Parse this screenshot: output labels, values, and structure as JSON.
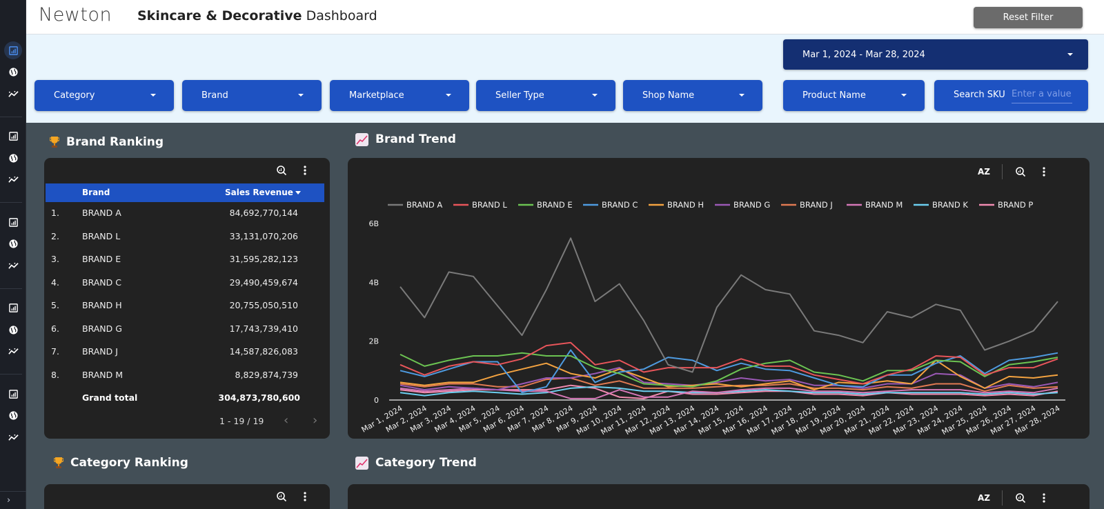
{
  "header": {
    "logo": "Newton",
    "title_bold": "Skincare & Decorative",
    "title_rest": "Dashboard",
    "reset_label": "Reset Filter"
  },
  "rail": {
    "groups": [
      [
        "report-icon",
        "globe-icon",
        "trend-icon"
      ],
      [
        "report-icon",
        "globe-icon",
        "trend-icon"
      ],
      [
        "report-icon",
        "globe-icon",
        "trend-icon"
      ],
      [
        "report-icon",
        "globe-icon",
        "trend-icon"
      ],
      [
        "report-icon",
        "globe-icon",
        "trend-icon"
      ]
    ],
    "active_index": 0,
    "expand_icon": "chevron-right-icon"
  },
  "filters": {
    "date_range": "Mar 1, 2024 - Mar 28, 2024",
    "dropdowns": [
      "Category",
      "Brand",
      "Marketplace",
      "Seller Type",
      "Shop Name",
      "Product Name"
    ],
    "sku_label": "Search SKU",
    "sku_placeholder": "Enter a value",
    "sku_value": ""
  },
  "brand_ranking": {
    "title": "Brand Ranking",
    "columns": [
      "Brand",
      "Sales Revenue"
    ],
    "sort_column": "Sales Revenue",
    "rows": [
      {
        "rank": "1.",
        "brand": "BRAND A",
        "revenue": "84,692,770,144"
      },
      {
        "rank": "2.",
        "brand": "BRAND L",
        "revenue": "33,131,070,206"
      },
      {
        "rank": "3.",
        "brand": "BRAND E",
        "revenue": "31,595,282,123"
      },
      {
        "rank": "4.",
        "brand": "BRAND C",
        "revenue": "29,490,459,674"
      },
      {
        "rank": "5.",
        "brand": "BRAND H",
        "revenue": "20,755,050,510"
      },
      {
        "rank": "6.",
        "brand": "BRAND G",
        "revenue": "17,743,739,410"
      },
      {
        "rank": "7.",
        "brand": "BRAND J",
        "revenue": "14,587,826,083"
      },
      {
        "rank": "8.",
        "brand": "BRAND M",
        "revenue": "8,829,874,739"
      }
    ],
    "grand_total_label": "Grand total",
    "grand_total": "304,873,780,600",
    "pagination": "1 - 19 / 19"
  },
  "brand_trend": {
    "title": "Brand Trend",
    "sort_label": "AZ"
  },
  "category_ranking": {
    "title": "Category Ranking"
  },
  "category_trend": {
    "title": "Category Trend",
    "sort_label": "AZ"
  },
  "chart_data": {
    "type": "line",
    "title": "Brand Trend",
    "xlabel": "",
    "ylabel": "",
    "ylim": [
      0,
      6000000000
    ],
    "yticks": [
      0,
      2000000000,
      4000000000,
      6000000000
    ],
    "ytick_labels": [
      "0",
      "2B",
      "4B",
      "6B"
    ],
    "grid": false,
    "legend": "top",
    "x": [
      "Mar 1, 2024",
      "Mar 2, 2024",
      "Mar 3, 2024",
      "Mar 4, 2024",
      "Mar 5, 2024",
      "Mar 6, 2024",
      "Mar 7, 2024",
      "Mar 8, 2024",
      "Mar 9, 2024",
      "Mar 10, 2024",
      "Mar 11, 2024",
      "Mar 12, 2024",
      "Mar 13, 2024",
      "Mar 14, 2024",
      "Mar 15, 2024",
      "Mar 16, 2024",
      "Mar 17, 2024",
      "Mar 18, 2024",
      "Mar 19, 2024",
      "Mar 20, 2024",
      "Mar 21, 2024",
      "Mar 22, 2024",
      "Mar 23, 2024",
      "Mar 24, 2024",
      "Mar 25, 2024",
      "Mar 26, 2024",
      "Mar 27, 2024",
      "Mar 28, 2024"
    ],
    "series": [
      {
        "name": "BRAND A",
        "color": "#7a7a7a",
        "values": [
          3.85,
          2.8,
          4.35,
          4.2,
          3.2,
          2.2,
          3.75,
          5.5,
          3.35,
          3.95,
          2.7,
          1.2,
          0.95,
          3.15,
          4.25,
          3.75,
          3.6,
          2.35,
          2.2,
          1.95,
          3.0,
          2.8,
          3.25,
          3.05,
          1.7,
          2.0,
          2.35,
          3.35
        ]
      },
      {
        "name": "BRAND L",
        "color": "#e8555a",
        "values": [
          1.2,
          0.85,
          1.15,
          1.3,
          1.2,
          1.4,
          1.85,
          1.95,
          1.2,
          1.35,
          0.95,
          1.1,
          1.1,
          1.1,
          1.4,
          1.15,
          1.15,
          0.85,
          0.7,
          0.55,
          0.85,
          1.05,
          1.5,
          1.45,
          0.85,
          1.1,
          1.1,
          1.4
        ]
      },
      {
        "name": "BRAND E",
        "color": "#6cc452",
        "values": [
          1.55,
          1.15,
          1.35,
          1.5,
          1.5,
          1.6,
          1.5,
          1.5,
          1.1,
          0.9,
          0.55,
          0.5,
          0.45,
          0.65,
          1.05,
          1.25,
          1.35,
          0.95,
          0.85,
          0.65,
          1.0,
          1.0,
          1.35,
          1.3,
          0.8,
          1.2,
          1.3,
          1.45
        ]
      },
      {
        "name": "BRAND C",
        "color": "#4e9be0",
        "values": [
          1.0,
          0.8,
          1.05,
          1.3,
          1.3,
          0.25,
          0.45,
          1.7,
          0.6,
          0.95,
          1.05,
          1.45,
          1.35,
          1.0,
          1.25,
          1.05,
          1.0,
          0.75,
          0.5,
          0.45,
          0.85,
          0.85,
          1.25,
          1.5,
          0.9,
          1.35,
          1.45,
          1.6
        ]
      },
      {
        "name": "BRAND H",
        "color": "#f4a340",
        "values": [
          0.6,
          0.5,
          0.6,
          0.6,
          0.85,
          1.05,
          1.25,
          0.9,
          0.75,
          1.05,
          0.75,
          0.45,
          0.5,
          0.55,
          0.45,
          0.55,
          0.65,
          0.35,
          0.6,
          0.55,
          0.65,
          0.55,
          1.35,
          0.8,
          0.4,
          0.8,
          0.75,
          0.85
        ]
      },
      {
        "name": "BRAND G",
        "color": "#9b59b6",
        "values": [
          0.5,
          0.35,
          0.45,
          0.4,
          0.35,
          0.55,
          0.75,
          0.75,
          0.9,
          1.1,
          0.6,
          0.55,
          0.5,
          0.6,
          0.75,
          0.65,
          0.7,
          0.5,
          0.5,
          0.4,
          0.55,
          0.55,
          0.9,
          0.85,
          0.4,
          0.55,
          0.45,
          0.6
        ]
      },
      {
        "name": "BRAND J",
        "color": "#e07a52",
        "values": [
          0.55,
          0.45,
          0.55,
          0.55,
          0.45,
          0.45,
          0.7,
          0.75,
          0.5,
          0.65,
          0.4,
          0.4,
          0.4,
          0.45,
          0.5,
          0.5,
          0.55,
          0.4,
          0.4,
          0.35,
          0.45,
          0.4,
          0.55,
          0.55,
          0.3,
          0.5,
          0.4,
          0.45
        ]
      },
      {
        "name": "BRAND M",
        "color": "#d678b8",
        "values": [
          0.4,
          0.3,
          0.35,
          0.4,
          0.35,
          0.3,
          0.3,
          0.05,
          0.05,
          0.35,
          0.1,
          0.1,
          0.3,
          0.25,
          0.35,
          0.4,
          0.4,
          0.3,
          0.3,
          0.25,
          0.3,
          0.35,
          0.35,
          0.35,
          0.25,
          0.3,
          0.25,
          0.4
        ]
      },
      {
        "name": "BRAND K",
        "color": "#6ccff0",
        "values": [
          0.25,
          0.15,
          0.25,
          0.3,
          0.25,
          0.2,
          0.25,
          0.4,
          0.45,
          0.4,
          0.3,
          0.3,
          0.25,
          0.25,
          0.3,
          0.35,
          0.3,
          0.25,
          0.25,
          0.2,
          0.25,
          0.25,
          0.25,
          0.25,
          0.2,
          0.25,
          0.2,
          0.25
        ]
      },
      {
        "name": "BRAND P",
        "color": "#f28cb1",
        "values": [
          0.35,
          0.25,
          0.3,
          0.35,
          0.35,
          0.35,
          0.35,
          0.5,
          0.4,
          0.1,
          0.05,
          0.3,
          0.2,
          0.2,
          0.25,
          0.3,
          0.3,
          0.2,
          0.2,
          0.15,
          0.25,
          0.2,
          0.2,
          0.2,
          0.15,
          0.2,
          0.15,
          0.3
        ]
      }
    ],
    "value_unit": "billions"
  }
}
